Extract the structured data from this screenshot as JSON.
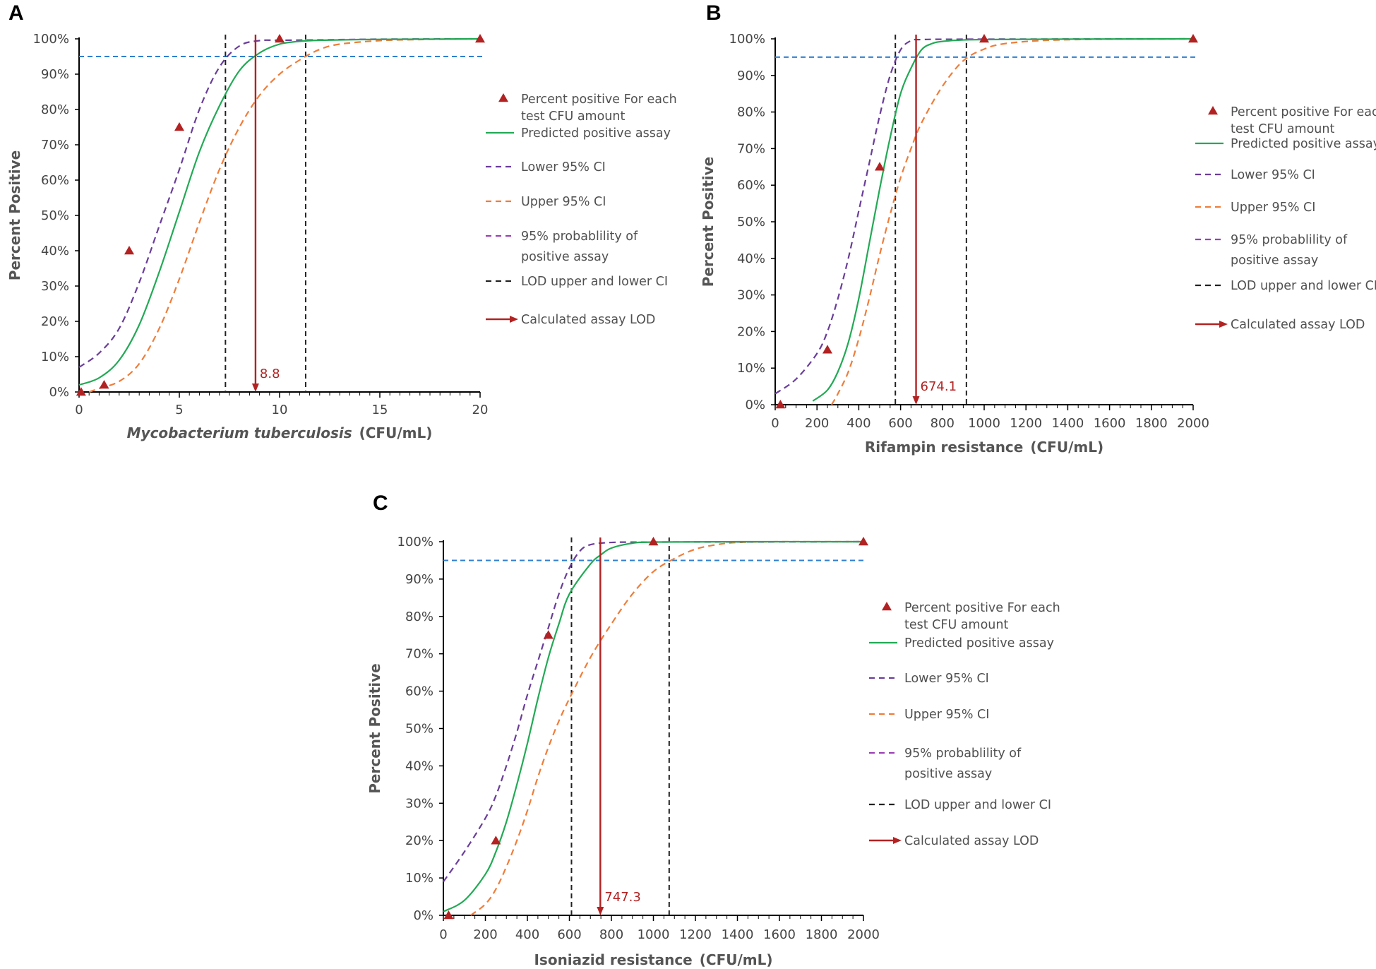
{
  "colors": {
    "fit": "#22aa55",
    "lower": "#6a3d9a",
    "upper": "#ef7d3a",
    "prob": "#9b3fb5",
    "lodci": "#222222",
    "lod": "#b22222",
    "hline": "#2f7fd0",
    "points": "#b22222",
    "axis": "#000000"
  },
  "chart_data": [
    {
      "panel": "A",
      "type": "scatter",
      "xlabel": "Mycobacterium tuberculosis",
      "xunit": "(CFU/mL)",
      "ylabel": "Percent Positive",
      "xlim": [
        0,
        20
      ],
      "ylim": [
        0,
        100
      ],
      "xticks": [
        0,
        5,
        10,
        15,
        20
      ],
      "xtick_labels": [
        "0",
        "5",
        "10",
        "15",
        "20"
      ],
      "yticks": [
        0,
        10,
        20,
        30,
        40,
        50,
        60,
        70,
        80,
        90,
        100
      ],
      "ytick_labels": [
        "0%",
        "10%",
        "20%",
        "30%",
        "40%",
        "50%",
        "60%",
        "70%",
        "80%",
        "90%",
        "100%"
      ],
      "points": [
        [
          0.1,
          0
        ],
        [
          1.25,
          2
        ],
        [
          2.5,
          40
        ],
        [
          5,
          75
        ],
        [
          10,
          100
        ],
        [
          20,
          100
        ]
      ],
      "curves": {
        "fit": [
          [
            0,
            2
          ],
          [
            1,
            4
          ],
          [
            2,
            9
          ],
          [
            3,
            19
          ],
          [
            4,
            34
          ],
          [
            5,
            51
          ],
          [
            6,
            68
          ],
          [
            7,
            81
          ],
          [
            8,
            91
          ],
          [
            9,
            96
          ],
          [
            10,
            98.5
          ],
          [
            11,
            99.3
          ],
          [
            12,
            99.6
          ],
          [
            14,
            99.8
          ],
          [
            17,
            99.9
          ],
          [
            20,
            100
          ]
        ],
        "lower": [
          [
            0,
            7
          ],
          [
            1,
            11
          ],
          [
            2,
            18
          ],
          [
            3,
            31
          ],
          [
            4,
            47
          ],
          [
            5,
            63
          ],
          [
            6,
            80
          ],
          [
            7,
            92
          ],
          [
            8,
            98
          ],
          [
            9,
            99.5
          ],
          [
            10,
            99.6
          ],
          [
            12,
            99.7
          ],
          [
            15,
            99.9
          ],
          [
            20,
            100
          ]
        ],
        "upper": [
          [
            0.5,
            0
          ],
          [
            1,
            1
          ],
          [
            2,
            3
          ],
          [
            3,
            8
          ],
          [
            4,
            18
          ],
          [
            5,
            32
          ],
          [
            6,
            48
          ],
          [
            7,
            63
          ],
          [
            8,
            75
          ],
          [
            9,
            84
          ],
          [
            10,
            90
          ],
          [
            11,
            94
          ],
          [
            12,
            97
          ],
          [
            13,
            98.5
          ],
          [
            15,
            99.5
          ],
          [
            17,
            99.8
          ],
          [
            20,
            100
          ]
        ]
      },
      "hline": 95,
      "lod": 8.8,
      "lod_label": "8.8",
      "lod_ci": [
        7.3,
        11.3
      ],
      "legend": [
        {
          "kind": "points",
          "label": "Percent positive For each",
          "label2": "test CFU amount"
        },
        {
          "kind": "fit",
          "label": "Predicted positive assay"
        },
        {
          "kind": "lower",
          "label": "Lower 95% CI"
        },
        {
          "kind": "upper",
          "label": "Upper 95% CI"
        },
        {
          "kind": "prob",
          "label": "95% probablility of",
          "label2": "positive assay"
        },
        {
          "kind": "lodci",
          "label": "LOD upper and lower CI"
        },
        {
          "kind": "lod",
          "label": "Calculated assay LOD"
        }
      ]
    },
    {
      "panel": "B",
      "type": "scatter",
      "xlabel": "Rifampin resistance",
      "xunit": "(CFU/mL)",
      "ylabel": "Percent Positive",
      "xlim": [
        0,
        2000
      ],
      "ylim": [
        0,
        100
      ],
      "xticks": [
        0,
        200,
        400,
        600,
        800,
        1000,
        1200,
        1400,
        1600,
        1800,
        2000
      ],
      "xtick_labels": [
        "0",
        "200",
        "400",
        "600",
        "800",
        "1000",
        "1200",
        "1400",
        "1600",
        "1800",
        "2000"
      ],
      "yticks": [
        0,
        10,
        20,
        30,
        40,
        50,
        60,
        70,
        80,
        90,
        100
      ],
      "ytick_labels": [
        "0%",
        "10%",
        "20%",
        "30%",
        "40%",
        "50%",
        "60%",
        "70%",
        "80%",
        "90%",
        "100%"
      ],
      "points": [
        [
          25,
          0
        ],
        [
          250,
          15
        ],
        [
          500,
          65
        ],
        [
          1000,
          100
        ],
        [
          2000,
          100
        ]
      ],
      "curves": {
        "fit": [
          [
            180,
            1
          ],
          [
            250,
            4
          ],
          [
            300,
            9
          ],
          [
            350,
            17
          ],
          [
            400,
            29
          ],
          [
            450,
            44
          ],
          [
            500,
            59
          ],
          [
            550,
            73
          ],
          [
            600,
            85
          ],
          [
            650,
            92
          ],
          [
            700,
            97
          ],
          [
            750,
            98.7
          ],
          [
            800,
            99.3
          ],
          [
            900,
            99.7
          ],
          [
            1000,
            99.8
          ],
          [
            1300,
            99.9
          ],
          [
            2000,
            100
          ]
        ],
        "lower": [
          [
            0,
            3
          ],
          [
            100,
            7
          ],
          [
            200,
            14
          ],
          [
            250,
            20
          ],
          [
            300,
            29
          ],
          [
            350,
            40
          ],
          [
            400,
            53
          ],
          [
            450,
            66
          ],
          [
            500,
            79
          ],
          [
            550,
            90
          ],
          [
            600,
            97
          ],
          [
            650,
            99.5
          ],
          [
            700,
            99.8
          ],
          [
            900,
            99.9
          ],
          [
            2000,
            100
          ]
        ],
        "upper": [
          [
            270,
            0
          ],
          [
            300,
            3
          ],
          [
            350,
            9
          ],
          [
            400,
            18
          ],
          [
            450,
            29
          ],
          [
            500,
            41
          ],
          [
            550,
            52
          ],
          [
            600,
            62
          ],
          [
            650,
            70
          ],
          [
            700,
            77
          ],
          [
            800,
            87
          ],
          [
            900,
            94
          ],
          [
            1000,
            97.2
          ],
          [
            1100,
            98.7
          ],
          [
            1300,
            99.6
          ],
          [
            1600,
            99.9
          ],
          [
            2000,
            100
          ]
        ]
      },
      "hline": 95,
      "lod": 674.1,
      "lod_label": "674.1",
      "lod_ci": [
        575,
        915
      ],
      "legend": [
        {
          "kind": "points",
          "label": "Percent positive For each",
          "label2": "test CFU amount"
        },
        {
          "kind": "fit",
          "label": "Predicted positive assay"
        },
        {
          "kind": "lower",
          "label": "Lower 95% CI"
        },
        {
          "kind": "upper",
          "label": "Upper 95% CI"
        },
        {
          "kind": "prob",
          "label": "95% probablility of",
          "label2": "positive assay"
        },
        {
          "kind": "lodci",
          "label": "LOD upper and lower CI"
        },
        {
          "kind": "lod",
          "label": "Calculated assay LOD"
        }
      ]
    },
    {
      "panel": "C",
      "type": "scatter",
      "xlabel": "Isoniazid resistance",
      "xunit": "(CFU/mL)",
      "ylabel": "Percent Positive",
      "xlim": [
        0,
        2000
      ],
      "ylim": [
        0,
        100
      ],
      "xticks": [
        0,
        200,
        400,
        600,
        800,
        1000,
        1200,
        1400,
        1600,
        1800,
        2000
      ],
      "xtick_labels": [
        "0",
        "200",
        "400",
        "600",
        "800",
        "1000",
        "1200",
        "1400",
        "1600",
        "1800",
        "2000"
      ],
      "yticks": [
        0,
        10,
        20,
        30,
        40,
        50,
        60,
        70,
        80,
        90,
        100
      ],
      "ytick_labels": [
        "0%",
        "10%",
        "20%",
        "30%",
        "40%",
        "50%",
        "60%",
        "70%",
        "80%",
        "90%",
        "100%"
      ],
      "points": [
        [
          25,
          0
        ],
        [
          250,
          20
        ],
        [
          500,
          75
        ],
        [
          1000,
          100
        ],
        [
          2000,
          100
        ]
      ],
      "curves": {
        "fit": [
          [
            0,
            1
          ],
          [
            100,
            4
          ],
          [
            200,
            11
          ],
          [
            250,
            17
          ],
          [
            300,
            25
          ],
          [
            350,
            35
          ],
          [
            400,
            46
          ],
          [
            450,
            58
          ],
          [
            500,
            69
          ],
          [
            550,
            78
          ],
          [
            600,
            86
          ],
          [
            700,
            94
          ],
          [
            750,
            96.5
          ],
          [
            800,
            98.3
          ],
          [
            900,
            99.6
          ],
          [
            1000,
            99.9
          ],
          [
            1400,
            100
          ],
          [
            2000,
            100
          ]
        ],
        "lower": [
          [
            0,
            9
          ],
          [
            100,
            17
          ],
          [
            200,
            26
          ],
          [
            250,
            32
          ],
          [
            300,
            40
          ],
          [
            350,
            49
          ],
          [
            400,
            59
          ],
          [
            450,
            68
          ],
          [
            500,
            77
          ],
          [
            550,
            86
          ],
          [
            600,
            93
          ],
          [
            650,
            97.5
          ],
          [
            700,
            99.2
          ],
          [
            800,
            99.8
          ],
          [
            1000,
            99.9
          ],
          [
            2000,
            100
          ]
        ],
        "upper": [
          [
            130,
            0
          ],
          [
            200,
            3
          ],
          [
            250,
            7
          ],
          [
            300,
            13
          ],
          [
            350,
            20
          ],
          [
            400,
            28
          ],
          [
            450,
            37
          ],
          [
            500,
            45
          ],
          [
            550,
            52
          ],
          [
            600,
            58
          ],
          [
            700,
            69
          ],
          [
            800,
            78
          ],
          [
            900,
            86
          ],
          [
            1000,
            92
          ],
          [
            1100,
            95.5
          ],
          [
            1200,
            98
          ],
          [
            1300,
            99.2
          ],
          [
            1400,
            99.8
          ],
          [
            1600,
            100
          ],
          [
            2000,
            100
          ]
        ]
      },
      "hline": 95,
      "lod": 747.3,
      "lod_label": "747.3",
      "lod_ci": [
        610,
        1075
      ],
      "legend": [
        {
          "kind": "points",
          "label": "Percent positive For each",
          "label2": "test CFU amount"
        },
        {
          "kind": "fit",
          "label": "Predicted positive assay"
        },
        {
          "kind": "lower",
          "label": "Lower 95% CI"
        },
        {
          "kind": "upper",
          "label": "Upper 95% CI"
        },
        {
          "kind": "prob",
          "label": "95% probablility of",
          "label2": "positive assay"
        },
        {
          "kind": "lodci",
          "label": "LOD upper and lower CI"
        },
        {
          "kind": "lod",
          "label": "Calculated assay LOD"
        }
      ]
    }
  ]
}
